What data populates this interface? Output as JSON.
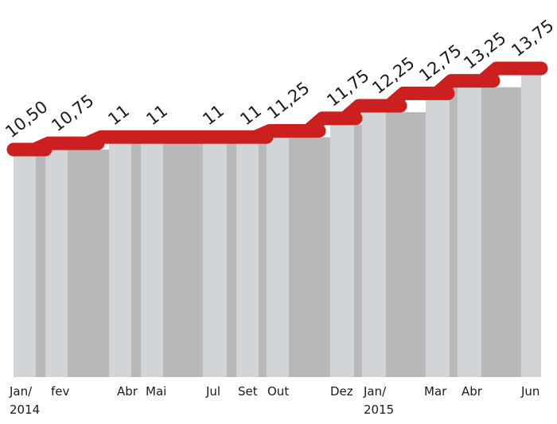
{
  "chart_data": {
    "type": "area",
    "title": "",
    "xlabel": "",
    "ylabel": "",
    "ylim": [
      0,
      13.75
    ],
    "grid": false,
    "legend": "none",
    "colors": {
      "line": "#cc1f1f",
      "band_light": "#d1d5d8",
      "band_dark": "#b8b8ba",
      "band_divider": "#bfc3c6"
    },
    "x_labels": [
      {
        "line1": "Jan/",
        "line2": "2014"
      },
      {
        "line1": "fev",
        "line2": ""
      },
      {
        "line1": "Abr",
        "line2": ""
      },
      {
        "line1": "Mai",
        "line2": ""
      },
      {
        "line1": "Jul",
        "line2": ""
      },
      {
        "line1": "Set",
        "line2": ""
      },
      {
        "line1": "Out",
        "line2": ""
      },
      {
        "line1": "Dez",
        "line2": ""
      },
      {
        "line1": "Jan/",
        "line2": "2015"
      },
      {
        "line1": "Mar",
        "line2": ""
      },
      {
        "line1": "Abr",
        "line2": ""
      },
      {
        "line1": "Jun",
        "line2": ""
      }
    ],
    "series": [
      {
        "values": [
          10.5,
          10.75,
          11,
          11,
          11,
          11,
          11.25,
          11.75,
          12.25,
          12.75,
          13.25,
          13.75
        ],
        "labels": [
          "10,50",
          "10,75",
          "11",
          "11",
          "11",
          "11",
          "11,25",
          "11,75",
          "12,25",
          "12,75",
          "13,25",
          "13,75"
        ]
      }
    ]
  }
}
